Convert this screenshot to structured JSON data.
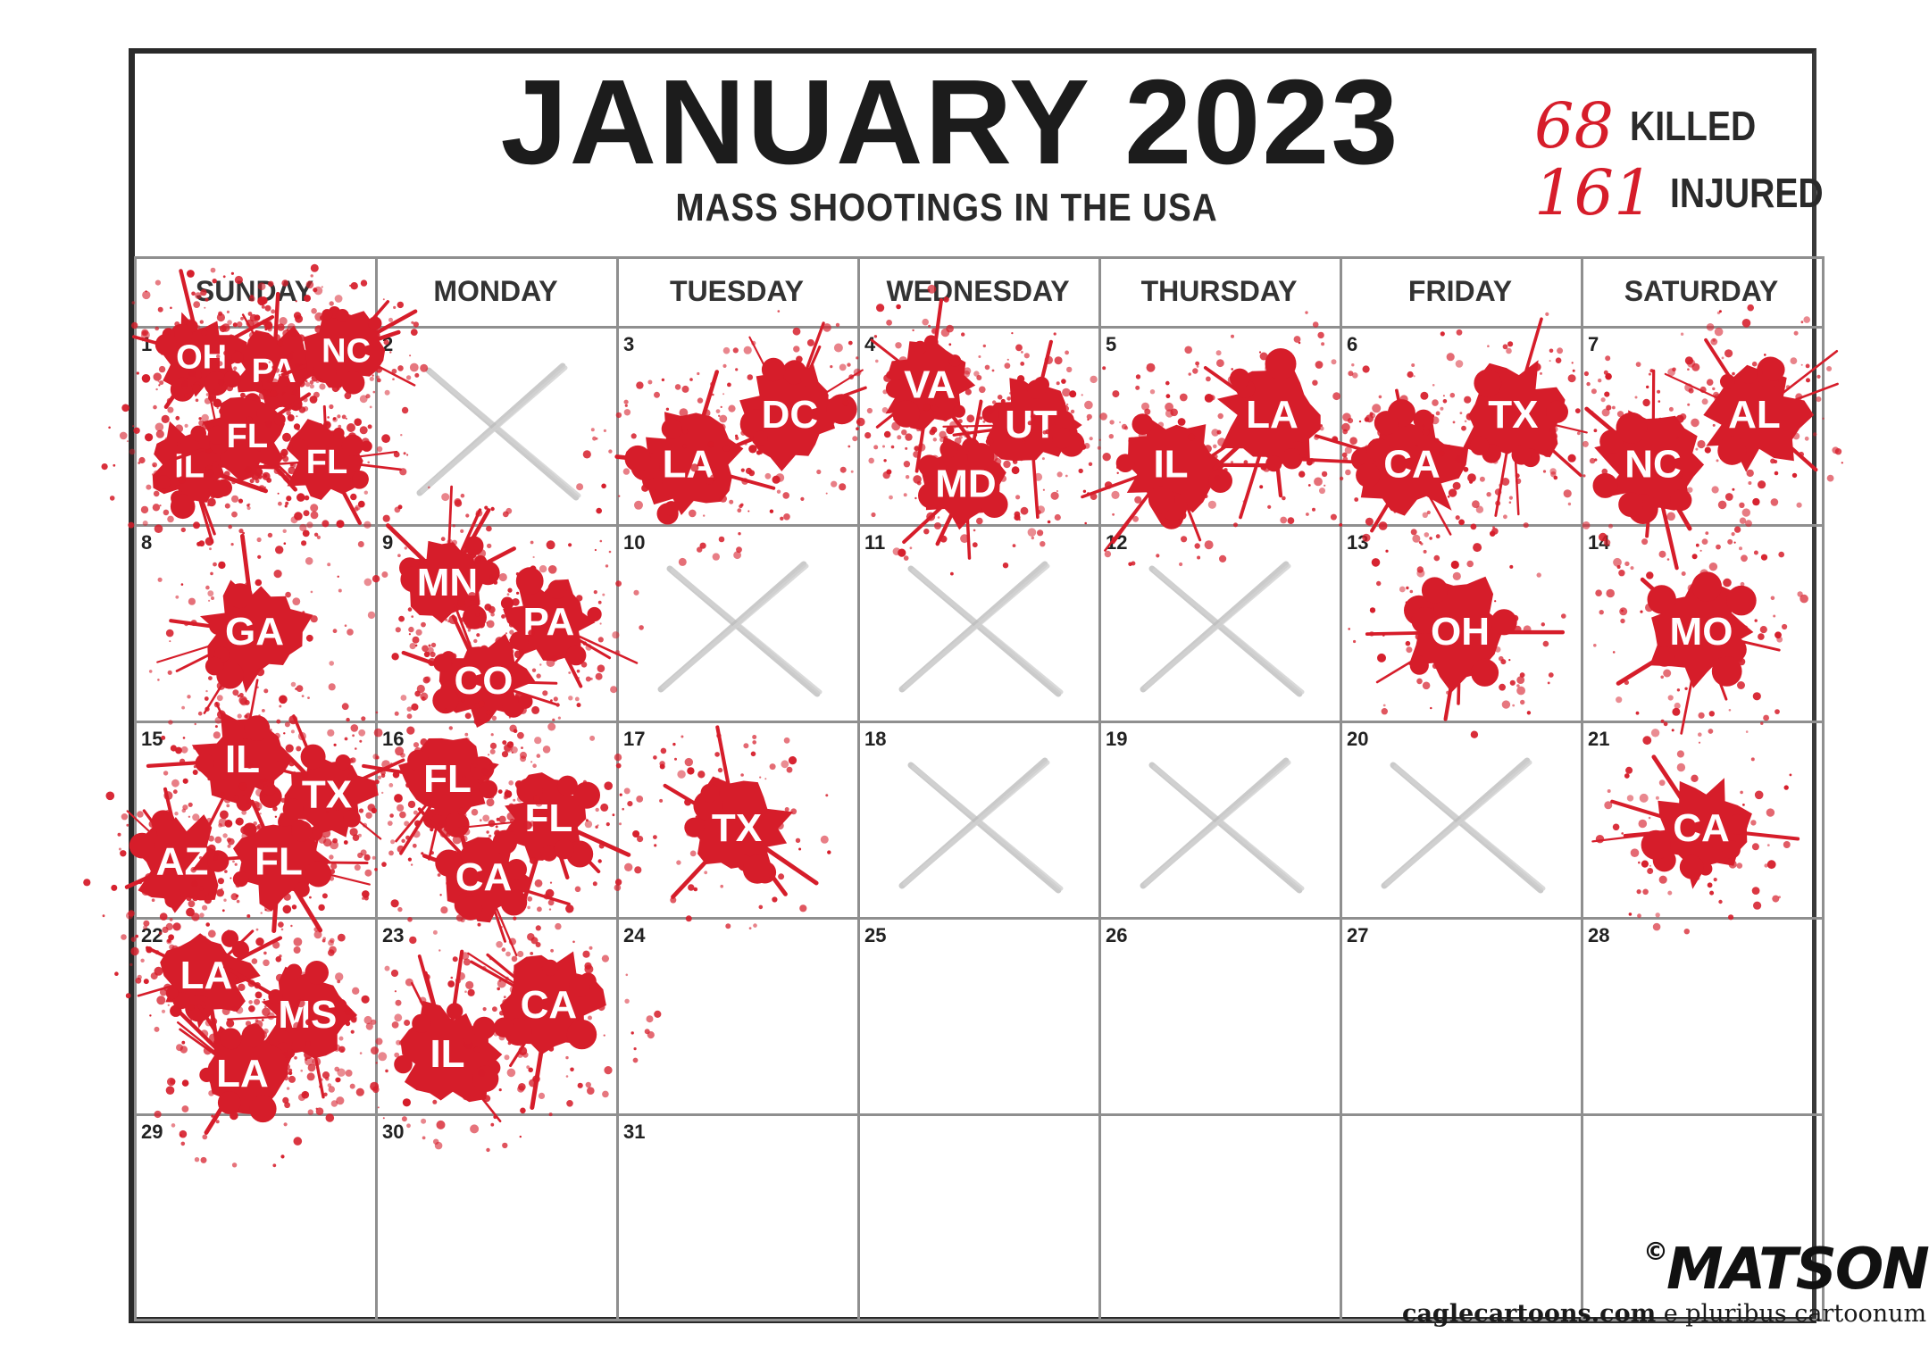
{
  "title": "JANUARY 2023",
  "subtitle": "MASS SHOOTINGS IN THE USA",
  "stats": {
    "killed_num": "68",
    "killed_label": "KILLED",
    "injured_num": "161",
    "injured_label": "INJURED"
  },
  "weekdays": [
    "SUNDAY",
    "MONDAY",
    "TUESDAY",
    "WEDNESDAY",
    "THURSDAY",
    "FRIDAY",
    "SATURDAY"
  ],
  "days": [
    "1",
    "2",
    "3",
    "4",
    "5",
    "6",
    "7",
    "8",
    "9",
    "10",
    "11",
    "12",
    "13",
    "14",
    "15",
    "16",
    "17",
    "18",
    "19",
    "20",
    "21",
    "22",
    "23",
    "24",
    "25",
    "26",
    "27",
    "28",
    "29",
    "30",
    "31"
  ],
  "crossed_out_days": [
    2,
    10,
    11,
    12,
    18,
    19,
    20
  ],
  "shootings": {
    "1": [
      "OH",
      "PA",
      "NC",
      "IL",
      "FL",
      "FL"
    ],
    "3": [
      "LA",
      "DC"
    ],
    "4": [
      "VA",
      "UT",
      "MD"
    ],
    "5": [
      "IL",
      "LA"
    ],
    "6": [
      "CA",
      "TX"
    ],
    "7": [
      "NC",
      "AL"
    ],
    "8": [
      "GA"
    ],
    "9": [
      "MN",
      "PA",
      "CO"
    ],
    "13": [
      "OH"
    ],
    "14": [
      "MO"
    ],
    "15": [
      "IL",
      "TX",
      "AZ",
      "FL"
    ],
    "16": [
      "FL",
      "FL",
      "CA"
    ],
    "17": [
      "TX"
    ],
    "21": [
      "CA"
    ],
    "22": [
      "LA",
      "MS",
      "LA"
    ],
    "23": [
      "IL",
      "CA"
    ]
  },
  "colors": {
    "blood": "#d61d2a",
    "grid": "#8f8f8f",
    "ink": "#1c1c1c"
  },
  "signature": "MATSON",
  "signature_mark": "©",
  "credit": {
    "site": "caglecartoons.com",
    "motto": "e pluribus cartoonum"
  }
}
